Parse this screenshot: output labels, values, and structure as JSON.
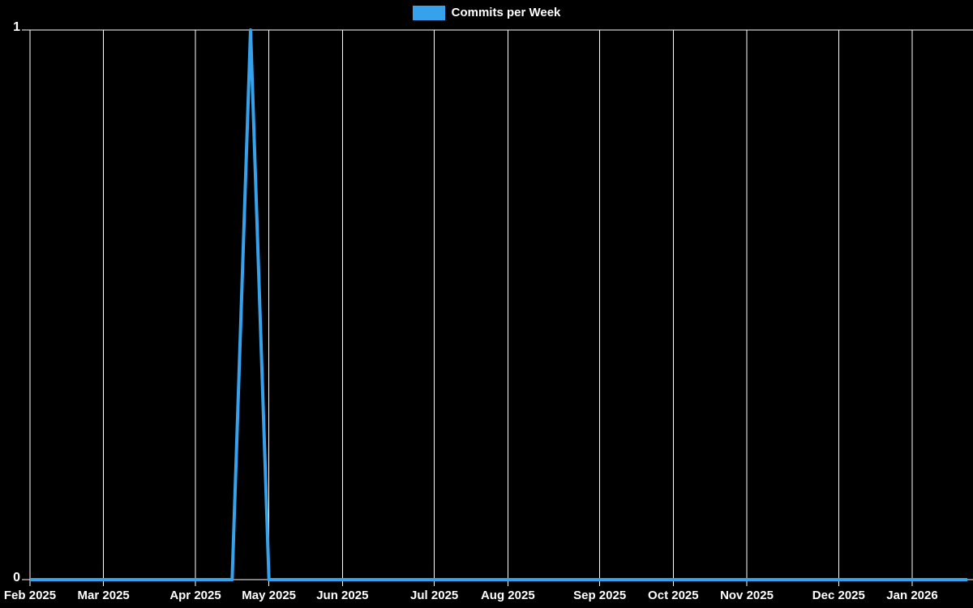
{
  "legend": {
    "label": "Commits per Week",
    "swatch_color": "#36a2eb"
  },
  "chart_data": {
    "type": "line",
    "title": "",
    "legend_entries": [
      "Commits per Week"
    ],
    "background_color": "#000000",
    "grid_color": "#ffffff",
    "text_color": "#ffffff",
    "ylim": [
      0,
      1
    ],
    "xlim_weeks": [
      0,
      51
    ],
    "grid": {
      "vertical": true,
      "horizontal_top_border": true
    },
    "y_ticks": [
      {
        "label": "1",
        "value": 1
      },
      {
        "label": "0",
        "value": 0
      }
    ],
    "x_ticks": [
      {
        "label": "Feb 2025",
        "week": 0
      },
      {
        "label": "Mar 2025",
        "week": 4
      },
      {
        "label": "Apr 2025",
        "week": 9
      },
      {
        "label": "May 2025",
        "week": 13
      },
      {
        "label": "Jun 2025",
        "week": 17
      },
      {
        "label": "Jul 2025",
        "week": 22
      },
      {
        "label": "Aug 2025",
        "week": 26
      },
      {
        "label": "Sep 2025",
        "week": 31
      },
      {
        "label": "Oct 2025",
        "week": 35
      },
      {
        "label": "Nov 2025",
        "week": 39
      },
      {
        "label": "Dec 2025",
        "week": 44
      },
      {
        "label": "Jan 2026",
        "week": 48
      }
    ],
    "series": [
      {
        "name": "Commits per Week",
        "color": "#36a2eb",
        "line_width": 4,
        "x_unit": "week_index",
        "values": [
          0,
          0,
          0,
          0,
          0,
          0,
          0,
          0,
          0,
          0,
          0,
          0,
          1,
          0,
          0,
          0,
          0,
          0,
          0,
          0,
          0,
          0,
          0,
          0,
          0,
          0,
          0,
          0,
          0,
          0,
          0,
          0,
          0,
          0,
          0,
          0,
          0,
          0,
          0,
          0,
          0,
          0,
          0,
          0,
          0,
          0,
          0,
          0,
          0,
          0,
          0,
          0
        ]
      }
    ],
    "peak": {
      "approx_x": "late Apr 2025 (one week before May 2025 tick)",
      "value": 1
    }
  }
}
